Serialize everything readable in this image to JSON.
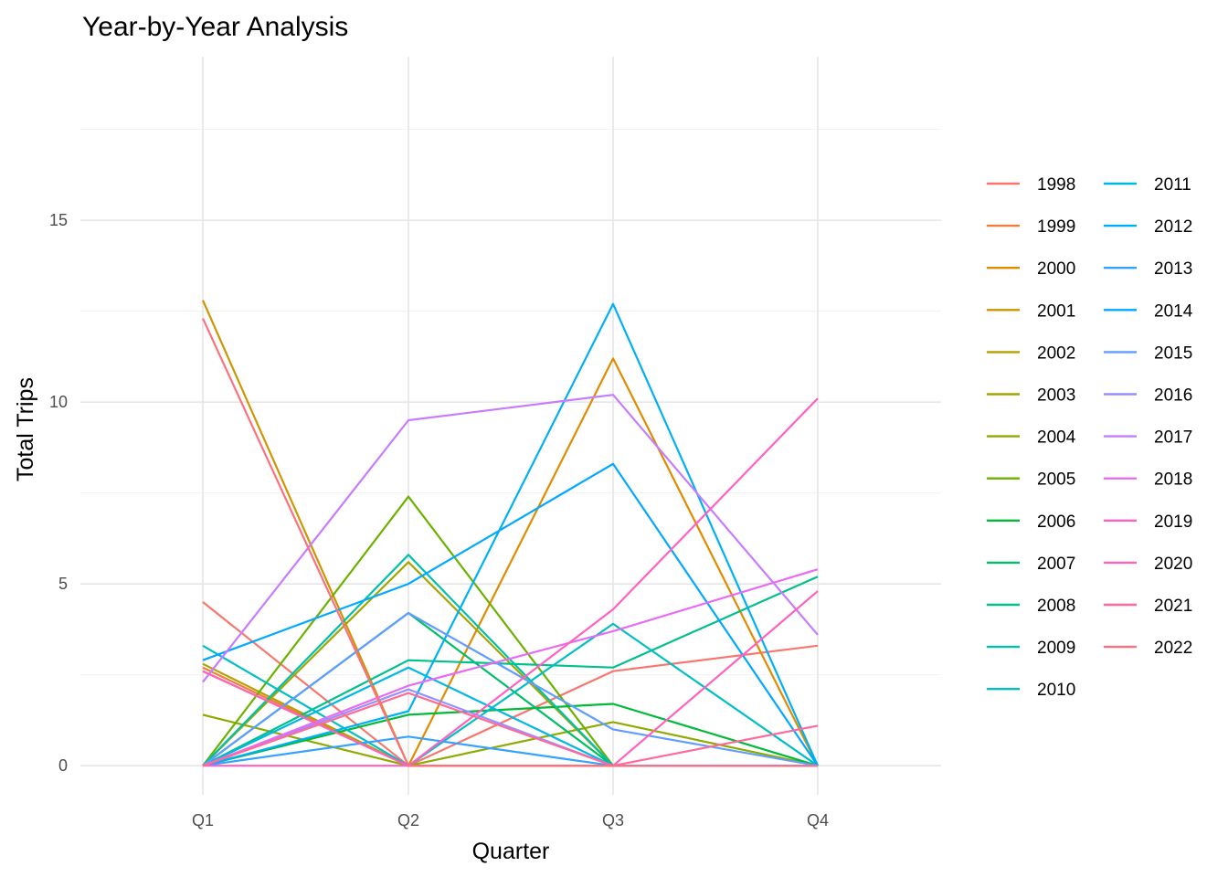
{
  "chart_data": {
    "type": "line",
    "title": "Year-by-Year Analysis",
    "xlabel": "Quarter",
    "ylabel": "Total Trips",
    "categories": [
      "Q1",
      "Q2",
      "Q3",
      "Q4"
    ],
    "yticks": [
      "0",
      "5",
      "10",
      "15"
    ],
    "ylim": [
      -0.8,
      19.5
    ],
    "grid": true,
    "legend_position": "right",
    "legend_columns": 2,
    "series": [
      {
        "name": "1998",
        "color": "#F8766D",
        "values": [
          4.5,
          0,
          2.6,
          3.3
        ]
      },
      {
        "name": "1999",
        "color": "#EF7F3F",
        "values": [
          2.7,
          0,
          0,
          0
        ]
      },
      {
        "name": "2000",
        "color": "#DE8C00",
        "values": [
          2.6,
          0,
          11.2,
          0
        ]
      },
      {
        "name": "2001",
        "color": "#CD9600",
        "values": [
          12.8,
          0,
          0,
          0
        ]
      },
      {
        "name": "2002",
        "color": "#B79F00",
        "values": [
          2.8,
          0,
          0,
          0
        ]
      },
      {
        "name": "2003",
        "color": "#A3A500",
        "values": [
          0,
          5.6,
          0,
          0
        ]
      },
      {
        "name": "2004",
        "color": "#8EAB00",
        "values": [
          1.4,
          0,
          1.2,
          0
        ]
      },
      {
        "name": "2005",
        "color": "#6BB100",
        "values": [
          0,
          7.4,
          0,
          0
        ]
      },
      {
        "name": "2006",
        "color": "#00BA38",
        "values": [
          0,
          1.4,
          1.7,
          0
        ]
      },
      {
        "name": "2007",
        "color": "#00BE67",
        "values": [
          0,
          4.2,
          0,
          0
        ]
      },
      {
        "name": "2008",
        "color": "#00C08B",
        "values": [
          0,
          2.9,
          2.7,
          5.2
        ]
      },
      {
        "name": "2009",
        "color": "#00C1A9",
        "values": [
          0,
          5.8,
          0,
          0
        ]
      },
      {
        "name": "2010",
        "color": "#00BFC4",
        "values": [
          3.3,
          0,
          3.9,
          0
        ]
      },
      {
        "name": "2011",
        "color": "#00B9E3",
        "values": [
          0,
          2.7,
          0,
          0
        ]
      },
      {
        "name": "2012",
        "color": "#00B0F6",
        "values": [
          0,
          1.5,
          12.7,
          0
        ]
      },
      {
        "name": "2013",
        "color": "#35A2FF",
        "values": [
          0,
          0.8,
          0,
          0
        ]
      },
      {
        "name": "2014",
        "color": "#00A9FF",
        "values": [
          2.9,
          5.0,
          8.3,
          0
        ]
      },
      {
        "name": "2015",
        "color": "#619CFF",
        "values": [
          0,
          4.2,
          1.0,
          0
        ]
      },
      {
        "name": "2016",
        "color": "#9590FF",
        "values": [
          0,
          2.1,
          0,
          0
        ]
      },
      {
        "name": "2017",
        "color": "#C77CFF",
        "values": [
          2.3,
          9.5,
          10.2,
          3.6
        ]
      },
      {
        "name": "2018",
        "color": "#E76BF3",
        "values": [
          0,
          2.2,
          3.7,
          5.4
        ]
      },
      {
        "name": "2019",
        "color": "#FF61C3",
        "values": [
          0,
          0,
          4.3,
          10.1
        ]
      },
      {
        "name": "2020",
        "color": "#FF62BC",
        "values": [
          2.6,
          0,
          0,
          4.8
        ]
      },
      {
        "name": "2021",
        "color": "#FF6A98",
        "values": [
          0,
          2.0,
          0,
          1.1
        ]
      },
      {
        "name": "2022",
        "color": "#FC717F",
        "values": [
          12.3,
          0,
          0,
          0
        ]
      }
    ]
  }
}
